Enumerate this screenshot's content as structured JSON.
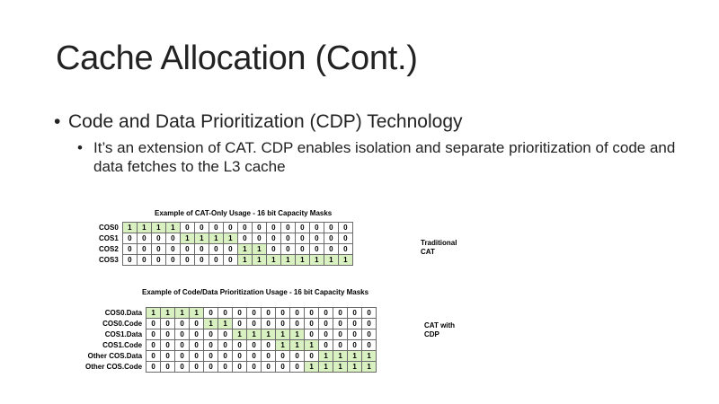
{
  "slide": {
    "title": "Cache Allocation (Cont.)",
    "bullet1": "Code and Data Prioritization (CDP) Technology",
    "bullet2": "It’s an extension of CAT. CDP enables isolation and separate prioritization of code and data fetches to the L3 cache",
    "bullet_glyph": "•"
  },
  "table1": {
    "caption": "Example of CAT-Only Usage - 16 bit Capacity Masks",
    "side_label_line1": "Traditional",
    "side_label_line2": "CAT",
    "highlight_color": "#d9f0c0",
    "rows": [
      {
        "label": "COS0",
        "bits": [
          1,
          1,
          1,
          1,
          0,
          0,
          0,
          0,
          0,
          0,
          0,
          0,
          0,
          0,
          0,
          0
        ]
      },
      {
        "label": "COS1",
        "bits": [
          0,
          0,
          0,
          0,
          1,
          1,
          1,
          1,
          0,
          0,
          0,
          0,
          0,
          0,
          0,
          0
        ]
      },
      {
        "label": "COS2",
        "bits": [
          0,
          0,
          0,
          0,
          0,
          0,
          0,
          0,
          1,
          1,
          0,
          0,
          0,
          0,
          0,
          0
        ]
      },
      {
        "label": "COS3",
        "bits": [
          0,
          0,
          0,
          0,
          0,
          0,
          0,
          0,
          1,
          1,
          1,
          1,
          1,
          1,
          1,
          1
        ]
      }
    ]
  },
  "table2": {
    "caption": "Example of Code/Data Prioritization Usage - 16 bit Capacity Masks",
    "side_label_line1": "CAT with",
    "side_label_line2": "CDP",
    "highlight_color": "#d9f0c0",
    "rows": [
      {
        "label": "COS0.Data",
        "bits": [
          1,
          1,
          1,
          1,
          0,
          0,
          0,
          0,
          0,
          0,
          0,
          0,
          0,
          0,
          0,
          0
        ]
      },
      {
        "label": "COS0.Code",
        "bits": [
          0,
          0,
          0,
          0,
          1,
          1,
          0,
          0,
          0,
          0,
          0,
          0,
          0,
          0,
          0,
          0
        ]
      },
      {
        "label": "COS1.Data",
        "bits": [
          0,
          0,
          0,
          0,
          0,
          0,
          1,
          1,
          1,
          1,
          1,
          0,
          0,
          0,
          0,
          0
        ]
      },
      {
        "label": "COS1.Code",
        "bits": [
          0,
          0,
          0,
          0,
          0,
          0,
          0,
          0,
          0,
          1,
          1,
          1,
          0,
          0,
          0,
          0
        ]
      },
      {
        "label": "Other COS.Data",
        "bits": [
          0,
          0,
          0,
          0,
          0,
          0,
          0,
          0,
          0,
          0,
          0,
          0,
          1,
          1,
          1,
          1
        ]
      },
      {
        "label": "Other COS.Code",
        "bits": [
          0,
          0,
          0,
          0,
          0,
          0,
          0,
          0,
          0,
          0,
          0,
          1,
          1,
          1,
          1,
          1
        ]
      }
    ]
  }
}
